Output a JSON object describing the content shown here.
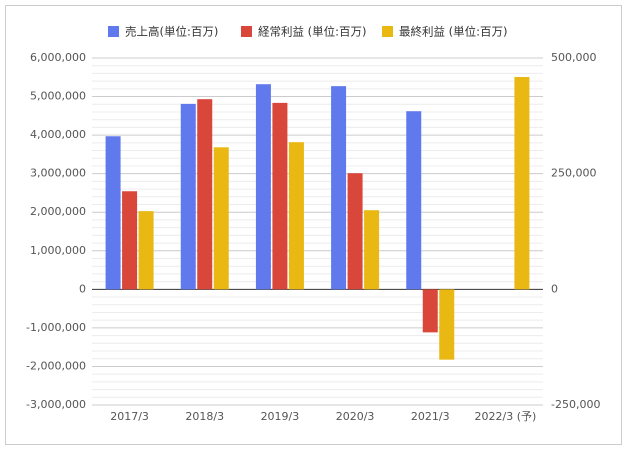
{
  "chart_data": {
    "type": "bar",
    "categories": [
      "2017/3",
      "2018/3",
      "2019/3",
      "2020/3",
      "2021/3",
      "2022/3 (予)"
    ],
    "series": [
      {
        "name": "売上高(単位:百万)",
        "color": "#6079ed",
        "values": [
          3970000,
          4810000,
          5320000,
          5270000,
          4620000,
          null
        ]
      },
      {
        "name": "経常利益 (単位:百万)",
        "color": "#d9473b",
        "axis": "y2",
        "values": [
          212000,
          411000,
          403000,
          251000,
          -93000,
          null
        ]
      },
      {
        "name": "最終利益 (単位:百万)",
        "color": "#e9b812",
        "axis": "y2",
        "values": [
          169000,
          307000,
          318000,
          171000,
          -152000,
          459000
        ]
      }
    ],
    "ylim": [
      -3000000,
      6000000
    ],
    "yticks": [
      {
        "value": -3000000,
        "label": "-3,000,000"
      },
      {
        "value": -2000000,
        "label": "-2,000,000"
      },
      {
        "value": -1000000,
        "label": "-1,000,000"
      },
      0,
      {
        "value": 1000000,
        "label": "1,000,000"
      },
      {
        "value": 2000000,
        "label": "2,000,000"
      },
      {
        "value": 3000000,
        "label": "3,000,000"
      },
      {
        "value": 4000000,
        "label": "4,000,000"
      },
      {
        "value": 5000000,
        "label": "5,000,000"
      },
      {
        "value": 6000000,
        "label": "6,000,000"
      }
    ],
    "y2lim": [
      -250000,
      500000
    ],
    "y2ticks": [
      {
        "value": -250000,
        "label": "-250,000"
      },
      0,
      {
        "value": 250000,
        "label": "250,000"
      },
      {
        "value": 500000,
        "label": "500,000"
      }
    ],
    "grid": true,
    "legend": "top"
  }
}
